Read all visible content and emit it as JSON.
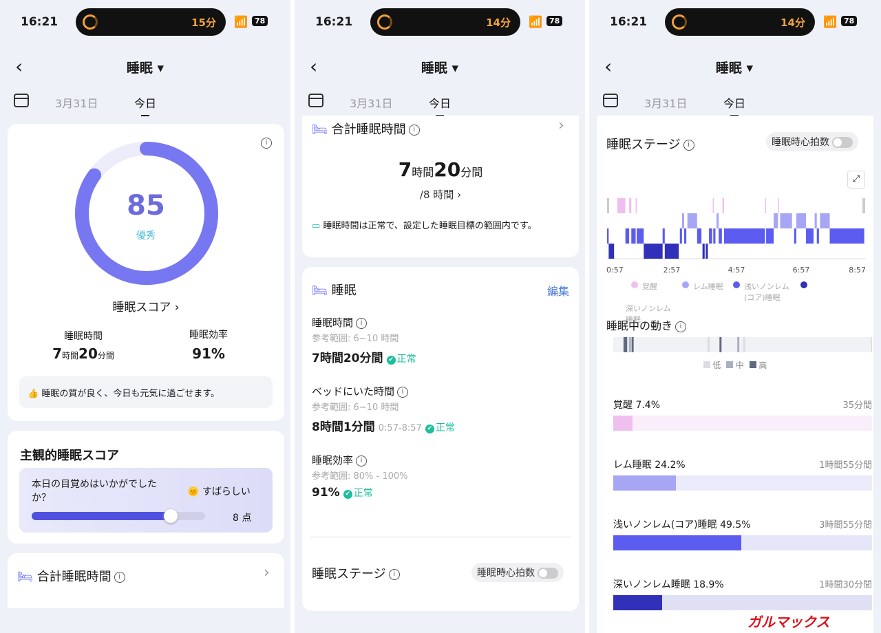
{
  "status": {
    "time": "16:21",
    "battery": "78",
    "timers": [
      "15分",
      "14分",
      "14分"
    ]
  },
  "header": {
    "title": "睡眠",
    "dates": [
      "3月31日",
      "今日"
    ]
  },
  "colors": {
    "accent": "#6c6cf5",
    "awake": "#f0bff0",
    "rem": "#a6a6f5",
    "light": "#5c5cf0",
    "deep": "#3030b8",
    "ok": "#1bbf9c"
  },
  "panel1": {
    "score": {
      "value": "85",
      "label": "優秀",
      "fraction": 0.85,
      "link": "睡眠スコア"
    },
    "stats": [
      {
        "label": "睡眠時間",
        "h": "7",
        "hu": "時間",
        "m": "20",
        "mu": "分間"
      },
      {
        "label": "睡眠効率",
        "value": "91%"
      }
    ],
    "tip": "睡眠の質が良く、今日も元気に過ごせます。",
    "subjective": {
      "title": "主観的睡眠スコア",
      "question": "本日の目覚めはいかがでした か？",
      "answer": "すばらしい",
      "points": "8 点",
      "fraction": 0.8
    },
    "total_title": "合計睡眠時間"
  },
  "panel2": {
    "total": {
      "title": "合計睡眠時間",
      "h": "7",
      "hu": "時間",
      "m": "20",
      "mu": "分間",
      "goal": "/8 時間",
      "note": "睡眠時間は正常で、設定した睡眠目標の範囲内です。"
    },
    "sleep": {
      "title": "睡眠",
      "edit": "編集",
      "items": [
        {
          "label": "睡眠時間",
          "ref": "参考範囲: 6~10 時間",
          "value": "7時間20分間",
          "extra": "",
          "status": "正常"
        },
        {
          "label": "ベッドにいた時間",
          "ref": "参考範囲: 6~10 時間",
          "value": "8時間1分間",
          "extra": "0:57-8:57",
          "status": "正常"
        },
        {
          "label": "睡眠効率",
          "ref": "参考範囲: 80% - 100%",
          "value": "91%",
          "extra": "",
          "status": "正常"
        }
      ]
    },
    "stage_title": "睡眠ステージ",
    "hr_toggle": "睡眠時心拍数"
  },
  "panel3": {
    "stage_title": "睡眠ステージ",
    "hr_toggle": "睡眠時心拍数",
    "movement_title": "睡眠中の動き",
    "movement_legend": [
      "低",
      "中",
      "高"
    ],
    "breakdown": [
      {
        "name": "覚醒",
        "pct": "7.4%",
        "dur": "35分間",
        "fraction": 0.074,
        "color": "#f0bff0",
        "bg": "#fbeefb"
      },
      {
        "name": "レム睡眠",
        "pct": "24.2%",
        "dur": "1時間55分間",
        "fraction": 0.242,
        "color": "#a6a6f5",
        "bg": "#ecebfb"
      },
      {
        "name": "浅いノンレム(コア)睡眠",
        "pct": "49.5%",
        "dur": "3時間55分間",
        "fraction": 0.495,
        "color": "#5c5cf0",
        "bg": "#e6e6fb"
      },
      {
        "name": "深いノンレム睡眠",
        "pct": "18.9%",
        "dur": "1時間30分間",
        "fraction": 0.189,
        "color": "#3030b8",
        "bg": "#e0e0f5"
      }
    ]
  },
  "chart_data": {
    "type": "timeline",
    "x_ticks": [
      "0:57",
      "2:57",
      "4:57",
      "6:57",
      "8:57"
    ],
    "x_range": [
      "0:57",
      "8:57"
    ],
    "legend": [
      {
        "name": "覚醒",
        "color": "#f0bff0"
      },
      {
        "name": "レム睡眠",
        "color": "#a6a6f5"
      },
      {
        "name": "浅いノンレム(コア)睡眠",
        "color": "#5c5cf0"
      },
      {
        "name": "深いノンレム睡眠",
        "color": "#3030b8"
      }
    ],
    "segments": [
      [
        "0:57",
        "1:00",
        "light"
      ],
      [
        "1:00",
        "1:10",
        "deep"
      ],
      [
        "1:16",
        "1:31",
        "awake"
      ],
      [
        "1:31",
        "1:38",
        "light"
      ],
      [
        "1:38",
        "1:42",
        "awake"
      ],
      [
        "1:42",
        "1:50",
        "light"
      ],
      [
        "1:50",
        "1:52",
        "awake"
      ],
      [
        "1:52",
        "2:05",
        "light"
      ],
      [
        "2:05",
        "2:40",
        "deep"
      ],
      [
        "2:40",
        "2:44",
        "light"
      ],
      [
        "2:44",
        "3:10",
        "deep"
      ],
      [
        "3:12",
        "3:16",
        "light"
      ],
      [
        "3:16",
        "3:20",
        "rem"
      ],
      [
        "3:20",
        "3:24",
        "light"
      ],
      [
        "3:26",
        "3:44",
        "rem"
      ],
      [
        "3:44",
        "3:52",
        "light"
      ],
      [
        "3:54",
        "3:58",
        "deep"
      ],
      [
        "4:00",
        "4:04",
        "deep"
      ],
      [
        "4:06",
        "4:12",
        "light"
      ],
      [
        "4:13",
        "4:14",
        "awake"
      ],
      [
        "4:14",
        "4:18",
        "light"
      ],
      [
        "4:20",
        "4:24",
        "rem"
      ],
      [
        "4:24",
        "4:30",
        "light"
      ],
      [
        "4:31",
        "4:34",
        "awake"
      ],
      [
        "4:34",
        "5:50",
        "light"
      ],
      [
        "5:50",
        "5:52",
        "awake"
      ],
      [
        "5:52",
        "6:06",
        "light"
      ],
      [
        "6:06",
        "6:14",
        "rem"
      ],
      [
        "6:14",
        "6:16",
        "awake"
      ],
      [
        "6:18",
        "6:40",
        "rem"
      ],
      [
        "6:44",
        "6:48",
        "light"
      ],
      [
        "6:48",
        "7:06",
        "rem"
      ],
      [
        "7:06",
        "7:20",
        "light"
      ],
      [
        "7:22",
        "7:26",
        "rem"
      ],
      [
        "7:26",
        "7:30",
        "light"
      ],
      [
        "7:32",
        "7:50",
        "rem"
      ],
      [
        "7:50",
        "8:54",
        "light"
      ]
    ],
    "movement": [
      [
        "1:16",
        "high"
      ],
      [
        "1:19",
        "high"
      ],
      [
        "1:26",
        "mid"
      ],
      [
        "1:31",
        "high"
      ],
      [
        "3:52",
        "low"
      ],
      [
        "4:14",
        "high"
      ],
      [
        "4:47",
        "mid"
      ],
      [
        "4:58",
        "low"
      ],
      [
        "8:55",
        "low"
      ]
    ]
  }
}
